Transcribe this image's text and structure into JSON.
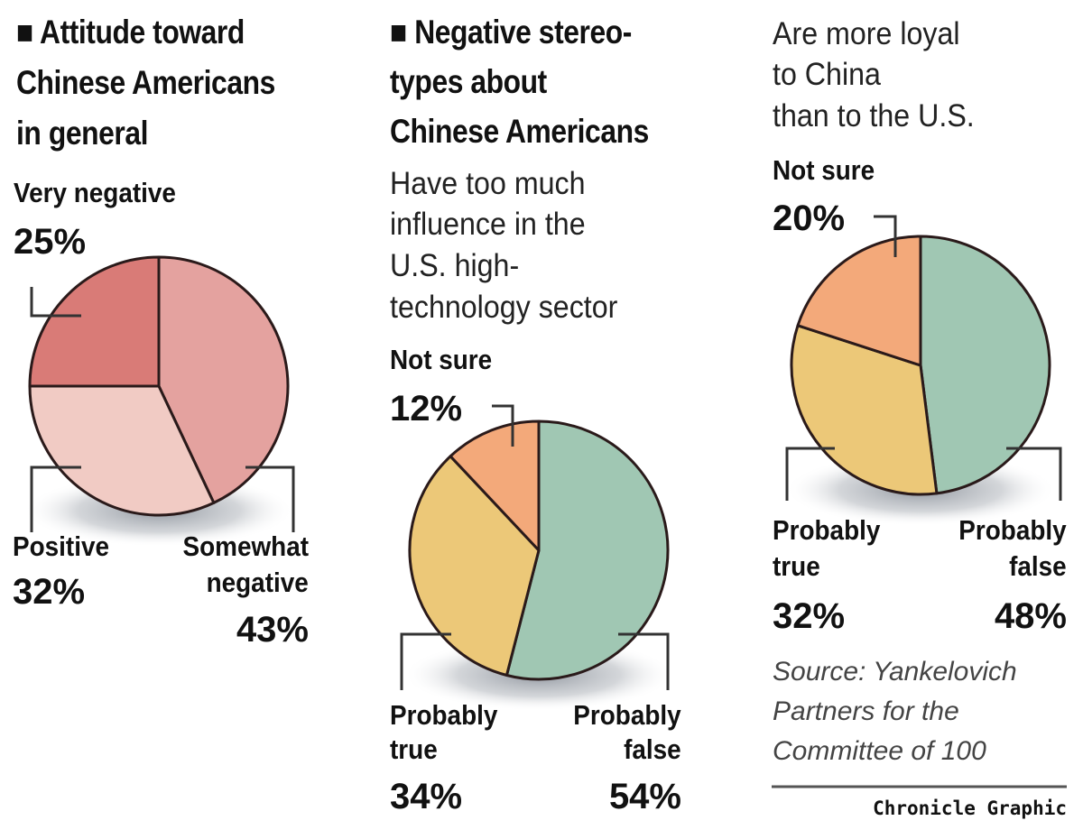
{
  "chart_data": [
    {
      "type": "pie",
      "title": "■ Attitude toward Chinese Americans in general",
      "title_lines": [
        "■ Attitude toward",
        "Chinese Americans",
        "in general"
      ],
      "slices": [
        {
          "label": "Somewhat negative",
          "value": 43,
          "display": "43%",
          "color": "#e4a29f"
        },
        {
          "label": "Positive",
          "value": 32,
          "display": "32%",
          "color": "#f1cbc4"
        },
        {
          "label": "Very negative",
          "value": 25,
          "display": "25%",
          "color": "#d97b77"
        }
      ]
    },
    {
      "type": "pie",
      "title": "■ Negative stereotypes about Chinese Americans",
      "title_lines": [
        "■ Negative stereo-",
        "types about",
        "Chinese Americans"
      ],
      "question_lines": [
        "Have too much",
        "influence in the",
        "U.S. high-",
        "technology sector"
      ],
      "slices": [
        {
          "label": "Probably false",
          "value": 54,
          "display": "54%",
          "color": "#a0c7b3"
        },
        {
          "label": "Probably true",
          "value": 34,
          "display": "34%",
          "color": "#ecc878"
        },
        {
          "label": "Not sure",
          "value": 12,
          "display": "12%",
          "color": "#f3a97a"
        }
      ]
    },
    {
      "type": "pie",
      "question_lines": [
        "Are more loyal",
        "to China",
        "than to the U.S."
      ],
      "slices": [
        {
          "label": "Probably false",
          "value": 48,
          "display": "48%",
          "color": "#a0c7b3"
        },
        {
          "label": "Probably true",
          "value": 32,
          "display": "32%",
          "color": "#ecc878"
        },
        {
          "label": "Not sure",
          "value": 20,
          "display": "20%",
          "color": "#f3a97a"
        }
      ]
    }
  ],
  "labels": {
    "very_negative": "Very negative",
    "positive": "Positive",
    "somewhat": "Somewhat",
    "negative": "negative",
    "not_sure": "Not sure",
    "probably": "Probably",
    "true": "true",
    "false": "false"
  },
  "source_lines": [
    "Source: Yankelovich",
    "Partners for the",
    "Committee of 100"
  ],
  "credit": "Chronicle Graphic"
}
